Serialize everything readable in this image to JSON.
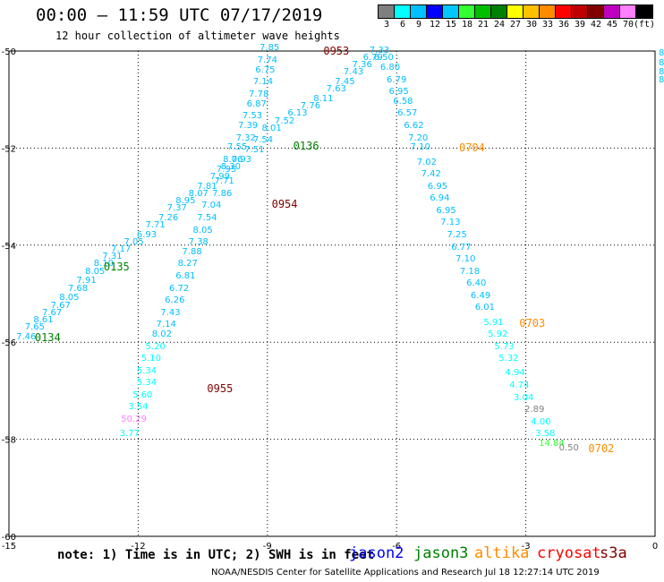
{
  "header": {
    "title": "00:00 — 11:59 UTC 07/17/2019",
    "subtitle": "12 hour collection of altimeter wave heights"
  },
  "colorbar": {
    "colors": [
      "#7f7f7f",
      "#00ffff",
      "#00bfff",
      "#0000ff",
      "#00c8ff",
      "#33ff33",
      "#00bf00",
      "#008000",
      "#ffff00",
      "#ffc000",
      "#ff8c00",
      "#ff0000",
      "#bf0000",
      "#800000",
      "#c000c0",
      "#ff80ff",
      "#000000"
    ],
    "labels": [
      "3",
      "6",
      "9",
      "12",
      "15",
      "18",
      "21",
      "24",
      "27",
      "30",
      "33",
      "36",
      "39",
      "42",
      "45",
      "70",
      "(ft)"
    ]
  },
  "axes": {
    "x_ticks": [
      "-15",
      "-12",
      "-9",
      "-6",
      "-3",
      "0"
    ],
    "y_ticks": [
      "-50",
      "-52",
      "-54",
      "-56",
      "-58",
      "-60"
    ]
  },
  "footer": {
    "note": "note: 1) Time is in UTC; 2) SWH is in feet",
    "satellites": [
      {
        "name": "jason2",
        "color": "#0000ff"
      },
      {
        "name": "jason3",
        "color": "#008000"
      },
      {
        "name": "altika",
        "color": "#ff8c00"
      },
      {
        "name": "cryosat",
        "color": "#ff0000"
      },
      {
        "name": "s3a",
        "color": "#800000"
      }
    ],
    "credit": "NOAA/NESDIS Center for Satellite Applications and Research   Jul 18 12:27:14 UTC 2019"
  },
  "chart_data": {
    "type": "scatter",
    "xlim": [
      -15,
      0
    ],
    "ylim": [
      -60,
      -50
    ],
    "x_ticks": [
      -15,
      -12,
      -9,
      -6,
      -3,
      0
    ],
    "y_ticks": [
      -50,
      -52,
      -54,
      -56,
      -58,
      -60
    ],
    "grid": true,
    "tracks": [
      {
        "time": "0134",
        "color": "#008000",
        "label_at": [
          -14.1,
          -55.9
        ],
        "points": [
          {
            "v": "7.46",
            "lon": -14.6,
            "lat": -55.9,
            "c": "#00bfff"
          },
          {
            "v": "7.65",
            "lon": -14.4,
            "lat": -55.7,
            "c": "#00bfff"
          },
          {
            "v": "8.61",
            "lon": -14.2,
            "lat": -55.55,
            "c": "#00bfff"
          },
          {
            "v": "7.67",
            "lon": -14.0,
            "lat": -55.4,
            "c": "#00bfff"
          },
          {
            "v": "7.67",
            "lon": -13.8,
            "lat": -55.25,
            "c": "#00bfff"
          },
          {
            "v": "8.05",
            "lon": -13.6,
            "lat": -55.1,
            "c": "#00bfff"
          },
          {
            "v": "7.68",
            "lon": -13.4,
            "lat": -54.9,
            "c": "#00bfff"
          },
          {
            "v": "7.91",
            "lon": -13.2,
            "lat": -54.75,
            "c": "#00bfff"
          },
          {
            "v": "8.05",
            "lon": -13.0,
            "lat": -54.55,
            "c": "#00bfff"
          },
          {
            "v": "8.10",
            "lon": -12.8,
            "lat": -54.4,
            "c": "#00bfff"
          },
          {
            "v": "7.31",
            "lon": -12.6,
            "lat": -54.25,
            "c": "#00bfff"
          },
          {
            "v": "7.17",
            "lon": -12.4,
            "lat": -54.1,
            "c": "#00bfff"
          }
        ]
      },
      {
        "time": "0135",
        "color": "#008000",
        "label_at": [
          -12.5,
          -54.45
        ],
        "points": [
          {
            "v": "7.05",
            "lon": -12.1,
            "lat": -53.95,
            "c": "#00bfff"
          },
          {
            "v": "6.93",
            "lon": -11.8,
            "lat": -53.8,
            "c": "#00bfff"
          },
          {
            "v": "7.71",
            "lon": -11.6,
            "lat": -53.6,
            "c": "#00bfff"
          },
          {
            "v": "7.26",
            "lon": -11.3,
            "lat": -53.45,
            "c": "#00bfff"
          },
          {
            "v": "7.37",
            "lon": -11.1,
            "lat": -53.25,
            "c": "#00bfff"
          },
          {
            "v": "8.95",
            "lon": -10.9,
            "lat": -53.1,
            "c": "#00bfff"
          },
          {
            "v": "8.07",
            "lon": -10.6,
            "lat": -52.95,
            "c": "#00bfff"
          },
          {
            "v": "7.81",
            "lon": -10.4,
            "lat": -52.8,
            "c": "#00bfff"
          },
          {
            "v": "7.99",
            "lon": -10.1,
            "lat": -52.6,
            "c": "#00bfff"
          },
          {
            "v": "8.30",
            "lon": -9.85,
            "lat": -52.4,
            "c": "#00bfff"
          },
          {
            "v": "7.93",
            "lon": -9.6,
            "lat": -52.25,
            "c": "#00bfff"
          },
          {
            "v": "7.51",
            "lon": -9.3,
            "lat": -52.05,
            "c": "#00bfff"
          },
          {
            "v": "7.54",
            "lon": -9.1,
            "lat": -51.85,
            "c": "#00bfff"
          },
          {
            "v": "8.01",
            "lon": -8.9,
            "lat": -51.6,
            "c": "#00bfff"
          },
          {
            "v": "7.52",
            "lon": -8.6,
            "lat": -51.45,
            "c": "#00bfff"
          },
          {
            "v": "6.13",
            "lon": -8.3,
            "lat": -51.3,
            "c": "#00bfff"
          },
          {
            "v": "7.76",
            "lon": -8.0,
            "lat": -51.15,
            "c": "#00bfff"
          },
          {
            "v": "8.11",
            "lon": -7.7,
            "lat": -51.0,
            "c": "#00bfff"
          },
          {
            "v": "7.63",
            "lon": -7.4,
            "lat": -50.8,
            "c": "#00bfff"
          },
          {
            "v": "7.45",
            "lon": -7.2,
            "lat": -50.65,
            "c": "#00bfff"
          },
          {
            "v": "7.43",
            "lon": -7.0,
            "lat": -50.45,
            "c": "#00bfff"
          },
          {
            "v": "7.36",
            "lon": -6.8,
            "lat": -50.3,
            "c": "#00bfff"
          },
          {
            "v": "6.79",
            "lon": -6.55,
            "lat": -50.15,
            "c": "#00bfff"
          },
          {
            "v": "7.33",
            "lon": -6.4,
            "lat": -50.0,
            "c": "#00bfff"
          }
        ]
      },
      {
        "time": "0136",
        "color": "#008000",
        "label_at": [
          -8.1,
          -51.95
        ],
        "points": [
          {
            "v": "7.85",
            "lon": -8.95,
            "lat": -49.95,
            "c": "#00bfff"
          },
          {
            "v": "7.74",
            "lon": -9.0,
            "lat": -50.2,
            "c": "#00bfff"
          },
          {
            "v": "6.75",
            "lon": -9.05,
            "lat": -50.4,
            "c": "#00bfff"
          },
          {
            "v": "7.14",
            "lon": -9.1,
            "lat": -50.65,
            "c": "#00bfff"
          },
          {
            "v": "7.78",
            "lon": -9.2,
            "lat": -50.9,
            "c": "#00bfff"
          },
          {
            "v": "6.87",
            "lon": -9.25,
            "lat": -51.1,
            "c": "#00bfff"
          },
          {
            "v": "7.53",
            "lon": -9.35,
            "lat": -51.35,
            "c": "#00bfff"
          },
          {
            "v": "7.39",
            "lon": -9.45,
            "lat": -51.55,
            "c": "#00bfff"
          },
          {
            "v": "7.32",
            "lon": -9.5,
            "lat": -51.8,
            "c": "#00bfff"
          },
          {
            "v": "7.55",
            "lon": -9.7,
            "lat": -52.0,
            "c": "#00bfff"
          },
          {
            "v": "8.06",
            "lon": -9.8,
            "lat": -52.25,
            "c": "#00bfff"
          },
          {
            "v": "7.95",
            "lon": -9.95,
            "lat": -52.45,
            "c": "#00bfff"
          },
          {
            "v": "7.71",
            "lon": -10.0,
            "lat": -52.7,
            "c": "#00bfff"
          },
          {
            "v": "7.86",
            "lon": -10.05,
            "lat": -52.95,
            "c": "#00bfff"
          },
          {
            "v": "7.04",
            "lon": -10.3,
            "lat": -53.2,
            "c": "#00bfff"
          },
          {
            "v": "7.54",
            "lon": -10.4,
            "lat": -53.45,
            "c": "#00bfff"
          },
          {
            "v": "8.05",
            "lon": -10.5,
            "lat": -53.7,
            "c": "#00bfff"
          },
          {
            "v": "7.38",
            "lon": -10.6,
            "lat": -53.95,
            "c": "#00bfff"
          },
          {
            "v": "7.88",
            "lon": -10.75,
            "lat": -54.15,
            "c": "#00bfff"
          },
          {
            "v": "8.27",
            "lon": -10.85,
            "lat": -54.4,
            "c": "#00bfff"
          },
          {
            "v": "6.81",
            "lon": -10.9,
            "lat": -54.65,
            "c": "#00bfff"
          },
          {
            "v": "6.72",
            "lon": -11.05,
            "lat": -54.9,
            "c": "#00bfff"
          },
          {
            "v": "6.26",
            "lon": -11.15,
            "lat": -55.15,
            "c": "#00bfff"
          },
          {
            "v": "7.43",
            "lon": -11.25,
            "lat": -55.4,
            "c": "#00bfff"
          },
          {
            "v": "7.14",
            "lon": -11.35,
            "lat": -55.65,
            "c": "#00bfff"
          },
          {
            "v": "8.02",
            "lon": -11.45,
            "lat": -55.85,
            "c": "#00bfff"
          },
          {
            "v": "5.20",
            "lon": -11.6,
            "lat": -56.1,
            "c": "#00ffff"
          },
          {
            "v": "5.10",
            "lon": -11.7,
            "lat": -56.35,
            "c": "#00ffff"
          },
          {
            "v": "5.34",
            "lon": -11.8,
            "lat": -56.6,
            "c": "#00ffff"
          },
          {
            "v": "5.34",
            "lon": -11.8,
            "lat": -56.85,
            "c": "#00ffff"
          },
          {
            "v": "5.60",
            "lon": -11.9,
            "lat": -57.1,
            "c": "#00ffff"
          },
          {
            "v": "3.54",
            "lon": -12.0,
            "lat": -57.35,
            "c": "#00ffff"
          },
          {
            "v": "50.29",
            "lon": -12.1,
            "lat": -57.6,
            "c": "#ff80ff"
          },
          {
            "v": "3.77",
            "lon": -12.2,
            "lat": -57.9,
            "c": "#00ffff"
          }
        ]
      },
      {
        "time": "0953",
        "color": "#800000",
        "label_at": [
          -7.4,
          -50.0
        ],
        "points": []
      },
      {
        "time": "0954",
        "color": "#800000",
        "label_at": [
          -8.6,
          -53.15
        ],
        "points": []
      },
      {
        "time": "0955",
        "color": "#800000",
        "label_at": [
          -10.1,
          -56.95
        ],
        "points": []
      },
      {
        "time": "0704",
        "color": "#ff8c00",
        "label_at": [
          -4.25,
          -52.0
        ],
        "points": [
          {
            "v": "6.50",
            "lon": -6.3,
            "lat": -50.15,
            "c": "#00bfff"
          },
          {
            "v": "6.80",
            "lon": -6.15,
            "lat": -50.35,
            "c": "#00bfff"
          },
          {
            "v": "6.79",
            "lon": -6.0,
            "lat": -50.6,
            "c": "#00bfff"
          },
          {
            "v": "6.95",
            "lon": -5.95,
            "lat": -50.85,
            "c": "#00bfff"
          },
          {
            "v": "6.58",
            "lon": -5.85,
            "lat": -51.05,
            "c": "#00bfff"
          },
          {
            "v": "6.57",
            "lon": -5.75,
            "lat": -51.3,
            "c": "#00bfff"
          },
          {
            "v": "6.62",
            "lon": -5.6,
            "lat": -51.55,
            "c": "#00bfff"
          },
          {
            "v": "7.20",
            "lon": -5.5,
            "lat": -51.8,
            "c": "#00bfff"
          },
          {
            "v": "7.10",
            "lon": -5.45,
            "lat": -52.0,
            "c": "#00bfff"
          },
          {
            "v": "7.02",
            "lon": -5.3,
            "lat": -52.3,
            "c": "#00bfff"
          },
          {
            "v": "7.42",
            "lon": -5.2,
            "lat": -52.55,
            "c": "#00bfff"
          },
          {
            "v": "6.95",
            "lon": -5.05,
            "lat": -52.8,
            "c": "#00bfff"
          },
          {
            "v": "6.94",
            "lon": -5.0,
            "lat": -53.05,
            "c": "#00bfff"
          },
          {
            "v": "6.95",
            "lon": -4.85,
            "lat": -53.3,
            "c": "#00bfff"
          },
          {
            "v": "7.13",
            "lon": -4.75,
            "lat": -53.55,
            "c": "#00bfff"
          },
          {
            "v": "7.25",
            "lon": -4.6,
            "lat": -53.8,
            "c": "#00bfff"
          },
          {
            "v": "6.77",
            "lon": -4.5,
            "lat": -54.05,
            "c": "#00bfff"
          }
        ]
      },
      {
        "time": "0703",
        "color": "#ff8c00",
        "label_at": [
          -2.85,
          -55.6
        ],
        "points": [
          {
            "v": "7.10",
            "lon": -4.4,
            "lat": -54.3,
            "c": "#00bfff"
          },
          {
            "v": "7.18",
            "lon": -4.3,
            "lat": -54.55,
            "c": "#00bfff"
          },
          {
            "v": "6.40",
            "lon": -4.15,
            "lat": -54.8,
            "c": "#00bfff"
          },
          {
            "v": "6.49",
            "lon": -4.05,
            "lat": -55.05,
            "c": "#00bfff"
          },
          {
            "v": "6.01",
            "lon": -3.95,
            "lat": -55.3,
            "c": "#00bfff"
          },
          {
            "v": "5.91",
            "lon": -3.75,
            "lat": -55.6,
            "c": "#00ffff"
          },
          {
            "v": "5.92",
            "lon": -3.65,
            "lat": -55.85,
            "c": "#00ffff"
          },
          {
            "v": "5.73",
            "lon": -3.5,
            "lat": -56.1,
            "c": "#00ffff"
          },
          {
            "v": "5.32",
            "lon": -3.4,
            "lat": -56.35,
            "c": "#00ffff"
          },
          {
            "v": "4.94",
            "lon": -3.25,
            "lat": -56.65,
            "c": "#00ffff"
          },
          {
            "v": "4.74",
            "lon": -3.15,
            "lat": -56.9,
            "c": "#00ffff"
          },
          {
            "v": "3.04",
            "lon": -3.05,
            "lat": -57.15,
            "c": "#00ffff"
          }
        ]
      },
      {
        "time": "0702",
        "color": "#ff8c00",
        "label_at": [
          -1.25,
          -58.2
        ],
        "points": [
          {
            "v": "2.89",
            "lon": -2.8,
            "lat": -57.4,
            "c": "#7f7f7f"
          },
          {
            "v": "4.00",
            "lon": -2.65,
            "lat": -57.65,
            "c": "#00ffff"
          },
          {
            "v": "3.58",
            "lon": -2.55,
            "lat": -57.9,
            "c": "#00ffff"
          },
          {
            "v": "14.84",
            "lon": -2.4,
            "lat": -58.1,
            "c": "#33ff33"
          },
          {
            "v": "0.50",
            "lon": -2.0,
            "lat": -58.2,
            "c": "#7f7f7f"
          }
        ]
      },
      {
        "time": "",
        "color": "#00bfff",
        "label_at": null,
        "points": [
          {
            "v": "8",
            "lon": 0.15,
            "lat": -50.05,
            "c": "#00bfff"
          },
          {
            "v": "8",
            "lon": 0.15,
            "lat": -50.25,
            "c": "#00bfff"
          },
          {
            "v": "8",
            "lon": 0.15,
            "lat": -50.45,
            "c": "#00bfff"
          },
          {
            "v": "8",
            "lon": 0.15,
            "lat": -50.6,
            "c": "#00bfff"
          }
        ]
      }
    ]
  }
}
